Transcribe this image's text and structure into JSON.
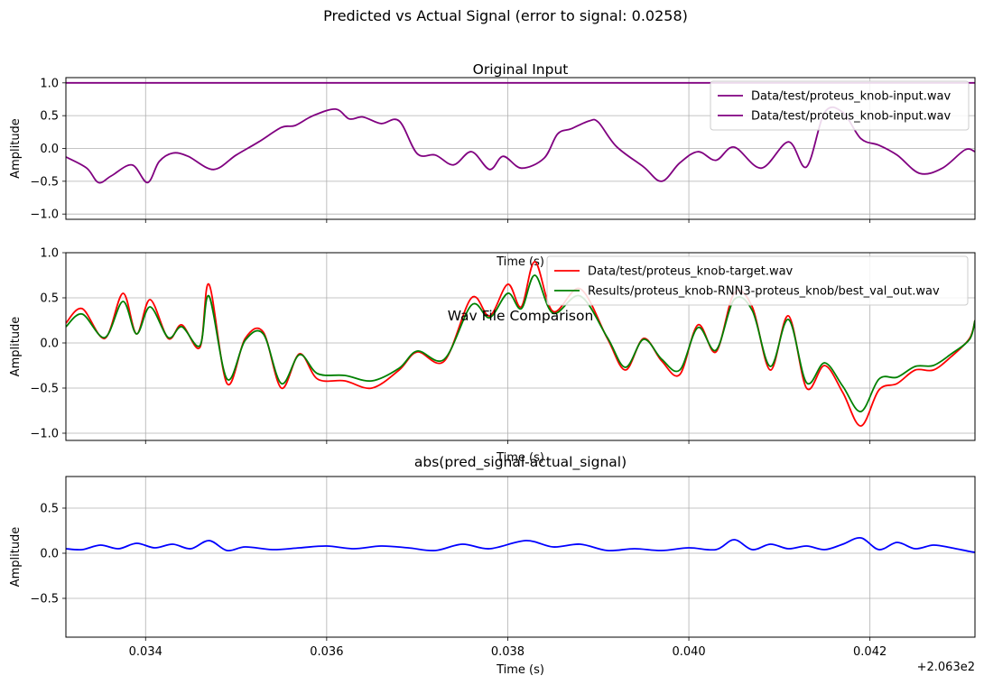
{
  "figure": {
    "suptitle": "Predicted vs Actual Signal (error to signal: 0.0258)",
    "offset_label": "+2.063e2"
  },
  "chart_data": [
    {
      "type": "line",
      "title": "Original Input",
      "xlabel": "Time (s)",
      "ylabel": "Amplitude",
      "xlim": [
        0.03312,
        0.04316
      ],
      "ylim": [
        -1.08,
        1.08
      ],
      "yticks": [
        "1.0",
        "0.5",
        "0.0",
        "−0.5",
        "−1.0"
      ],
      "ytick_values": [
        1.0,
        0.5,
        0.0,
        -0.5,
        -1.0
      ],
      "grid": true,
      "legend_position": "top-right",
      "series": [
        {
          "name": "Data/test/proteus_knob-input.wav",
          "color": "#800080",
          "x": [
            0.0331,
            0.034,
            0.0349,
            0.0358,
            0.0367,
            0.0376,
            0.0385,
            0.0394,
            0.0403,
            0.0412,
            0.0421,
            0.0432
          ],
          "y": [
            1.0,
            1.0,
            1.0,
            1.0,
            1.0,
            1.0,
            1.0,
            1.0,
            1.0,
            1.0,
            1.0,
            1.0
          ]
        },
        {
          "name": "Data/test/proteus_knob-input.wav",
          "color": "#800080",
          "x": [
            0.03312,
            0.03335,
            0.03348,
            0.03362,
            0.03385,
            0.03402,
            0.03415,
            0.0343,
            0.03447,
            0.03475,
            0.035,
            0.03525,
            0.0355,
            0.03565,
            0.03585,
            0.0361,
            0.03625,
            0.0364,
            0.0366,
            0.0368,
            0.037,
            0.0372,
            0.0374,
            0.0376,
            0.0378,
            0.03795,
            0.03815,
            0.0384,
            0.03855,
            0.0387,
            0.0389,
            0.039,
            0.0392,
            0.0395,
            0.0397,
            0.0399,
            0.0401,
            0.0403,
            0.0405,
            0.0408,
            0.0411,
            0.0413,
            0.0415,
            0.0417,
            0.0419,
            0.0421,
            0.0423,
            0.04255,
            0.0428,
            0.04305,
            0.04316
          ],
          "y": [
            -0.13,
            -0.3,
            -0.52,
            -0.42,
            -0.25,
            -0.52,
            -0.2,
            -0.07,
            -0.12,
            -0.32,
            -0.1,
            0.1,
            0.32,
            0.35,
            0.5,
            0.6,
            0.45,
            0.48,
            0.38,
            0.42,
            -0.08,
            -0.1,
            -0.25,
            -0.05,
            -0.32,
            -0.12,
            -0.3,
            -0.15,
            0.22,
            0.3,
            0.42,
            0.4,
            0.03,
            -0.28,
            -0.5,
            -0.22,
            -0.05,
            -0.18,
            0.02,
            -0.3,
            0.1,
            -0.28,
            0.55,
            0.55,
            0.15,
            0.05,
            -0.1,
            -0.38,
            -0.3,
            -0.02,
            -0.05
          ]
        }
      ]
    },
    {
      "type": "line",
      "title": "Wav File Comparison",
      "xlabel": "Time (s)",
      "ylabel": "Amplitude",
      "xlim": [
        0.03312,
        0.04316
      ],
      "ylim": [
        -1.08,
        1.0
      ],
      "yticks": [
        "1.0",
        "0.5",
        "0.0",
        "−0.5",
        "−1.0"
      ],
      "ytick_values": [
        1.0,
        0.5,
        0.0,
        -0.5,
        -1.0
      ],
      "grid": true,
      "legend_position": "top-right",
      "series": [
        {
          "name": "Data/test/proteus_knob-target.wav",
          "color": "#ff0000",
          "x": [
            0.03312,
            0.0333,
            0.03355,
            0.03375,
            0.0339,
            0.03405,
            0.03425,
            0.0344,
            0.0346,
            0.0347,
            0.0349,
            0.0351,
            0.0353,
            0.0355,
            0.0357,
            0.0359,
            0.0362,
            0.0365,
            0.0368,
            0.037,
            0.0373,
            0.0376,
            0.0378,
            0.038,
            0.03815,
            0.0383,
            0.0385,
            0.0388,
            0.0391,
            0.0393,
            0.0395,
            0.0397,
            0.0399,
            0.0401,
            0.0403,
            0.0405,
            0.0407,
            0.0409,
            0.0411,
            0.0413,
            0.0415,
            0.0417,
            0.0419,
            0.0421,
            0.0423,
            0.0425,
            0.0427,
            0.0429,
            0.0431,
            0.04316
          ],
          "y": [
            0.22,
            0.38,
            0.05,
            0.55,
            0.1,
            0.48,
            0.05,
            0.2,
            -0.05,
            0.65,
            -0.45,
            0.05,
            0.12,
            -0.5,
            -0.12,
            -0.4,
            -0.42,
            -0.5,
            -0.3,
            -0.1,
            -0.2,
            0.5,
            0.3,
            0.65,
            0.4,
            0.9,
            0.35,
            0.6,
            0.05,
            -0.3,
            0.05,
            -0.2,
            -0.35,
            0.2,
            -0.1,
            0.55,
            0.4,
            -0.3,
            0.3,
            -0.5,
            -0.25,
            -0.55,
            -0.92,
            -0.52,
            -0.45,
            -0.3,
            -0.3,
            -0.15,
            0.05,
            0.25
          ]
        },
        {
          "name": "Results/proteus_knob-RNN3-proteus_knob/best_val_out.wav",
          "color": "#008000",
          "x": [
            0.03312,
            0.0333,
            0.03355,
            0.03375,
            0.0339,
            0.03405,
            0.03425,
            0.0344,
            0.0346,
            0.0347,
            0.0349,
            0.0351,
            0.0353,
            0.0355,
            0.0357,
            0.0359,
            0.0362,
            0.0365,
            0.0368,
            0.037,
            0.0373,
            0.0376,
            0.0378,
            0.038,
            0.03815,
            0.0383,
            0.0385,
            0.0388,
            0.0391,
            0.0393,
            0.0395,
            0.0397,
            0.0399,
            0.0401,
            0.0403,
            0.0405,
            0.0407,
            0.0409,
            0.0411,
            0.0413,
            0.0415,
            0.0417,
            0.0419,
            0.0421,
            0.0423,
            0.0425,
            0.0427,
            0.0429,
            0.0431,
            0.04316
          ],
          "y": [
            0.18,
            0.32,
            0.06,
            0.46,
            0.1,
            0.4,
            0.06,
            0.18,
            -0.03,
            0.52,
            -0.4,
            0.03,
            0.1,
            -0.45,
            -0.13,
            -0.34,
            -0.36,
            -0.42,
            -0.28,
            -0.09,
            -0.18,
            0.42,
            0.28,
            0.55,
            0.38,
            0.75,
            0.33,
            0.52,
            0.06,
            -0.27,
            0.04,
            -0.18,
            -0.3,
            0.17,
            -0.08,
            0.48,
            0.36,
            -0.26,
            0.26,
            -0.44,
            -0.22,
            -0.48,
            -0.76,
            -0.4,
            -0.38,
            -0.26,
            -0.25,
            -0.12,
            0.04,
            0.25
          ]
        }
      ]
    },
    {
      "type": "line",
      "title": "abs(pred_signal-actual_signal)",
      "xlabel": "Time (s)",
      "ylabel": "Amplitude",
      "xlim": [
        0.03312,
        0.04316
      ],
      "ylim": [
        -0.93,
        0.85
      ],
      "xticks": [
        "0.034",
        "0.036",
        "0.038",
        "0.040",
        "0.042"
      ],
      "xtick_values": [
        0.034,
        0.036,
        0.038,
        0.04,
        0.042
      ],
      "yticks": [
        "0.5",
        "0.0",
        "−0.5"
      ],
      "ytick_values": [
        0.5,
        0.0,
        -0.5
      ],
      "grid": true,
      "series": [
        {
          "color": "#0000ff",
          "x": [
            0.03312,
            0.0333,
            0.0335,
            0.0337,
            0.0339,
            0.0341,
            0.0343,
            0.0345,
            0.0347,
            0.0349,
            0.0351,
            0.0354,
            0.0357,
            0.036,
            0.0363,
            0.0366,
            0.0369,
            0.0372,
            0.0375,
            0.0378,
            0.0382,
            0.0385,
            0.0388,
            0.0391,
            0.0394,
            0.0397,
            0.04,
            0.0403,
            0.0405,
            0.0407,
            0.0409,
            0.0411,
            0.0413,
            0.0415,
            0.0417,
            0.0419,
            0.0421,
            0.0423,
            0.0425,
            0.0427,
            0.0429,
            0.0431,
            0.04316
          ],
          "y": [
            0.05,
            0.04,
            0.09,
            0.05,
            0.11,
            0.06,
            0.1,
            0.05,
            0.14,
            0.03,
            0.07,
            0.04,
            0.06,
            0.08,
            0.05,
            0.08,
            0.06,
            0.03,
            0.1,
            0.05,
            0.14,
            0.07,
            0.1,
            0.03,
            0.05,
            0.03,
            0.06,
            0.04,
            0.15,
            0.04,
            0.1,
            0.05,
            0.08,
            0.04,
            0.1,
            0.17,
            0.04,
            0.12,
            0.05,
            0.09,
            0.06,
            0.02,
            0.01
          ]
        }
      ]
    }
  ]
}
